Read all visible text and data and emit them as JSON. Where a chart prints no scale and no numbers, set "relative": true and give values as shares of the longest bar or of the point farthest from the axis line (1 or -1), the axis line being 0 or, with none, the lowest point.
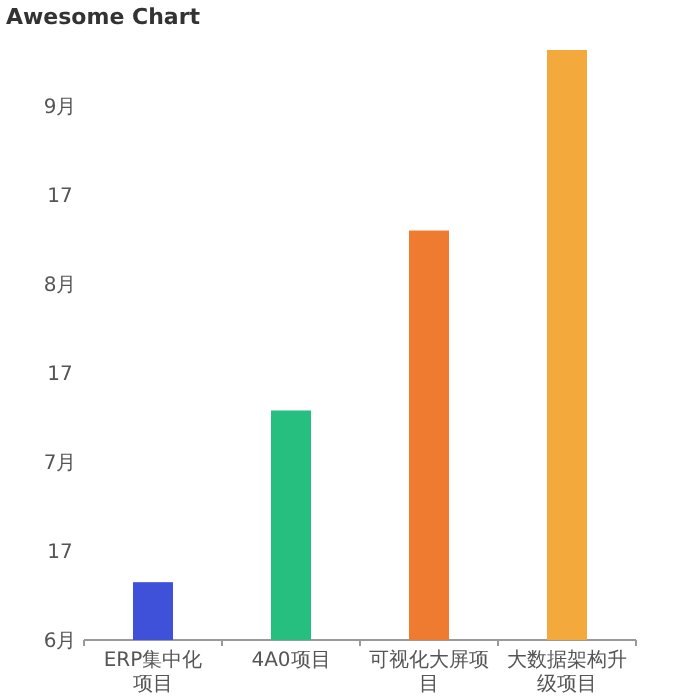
{
  "chart_data": {
    "type": "bar",
    "title": "Awesome Chart",
    "relative": true,
    "categories": [
      "ERP集中化项目",
      "4A0项目",
      "可视化大屏项目",
      "大数据架构升级项目"
    ],
    "values": [
      0.098,
      0.389,
      0.694,
      1
    ],
    "colors": [
      "#3f51d9",
      "#26bf7f",
      "#ef7b30",
      "#f3a93b"
    ],
    "annotations": [
      "6月",
      "17",
      "7月",
      "17",
      "8月",
      "17",
      "9月"
    ]
  }
}
